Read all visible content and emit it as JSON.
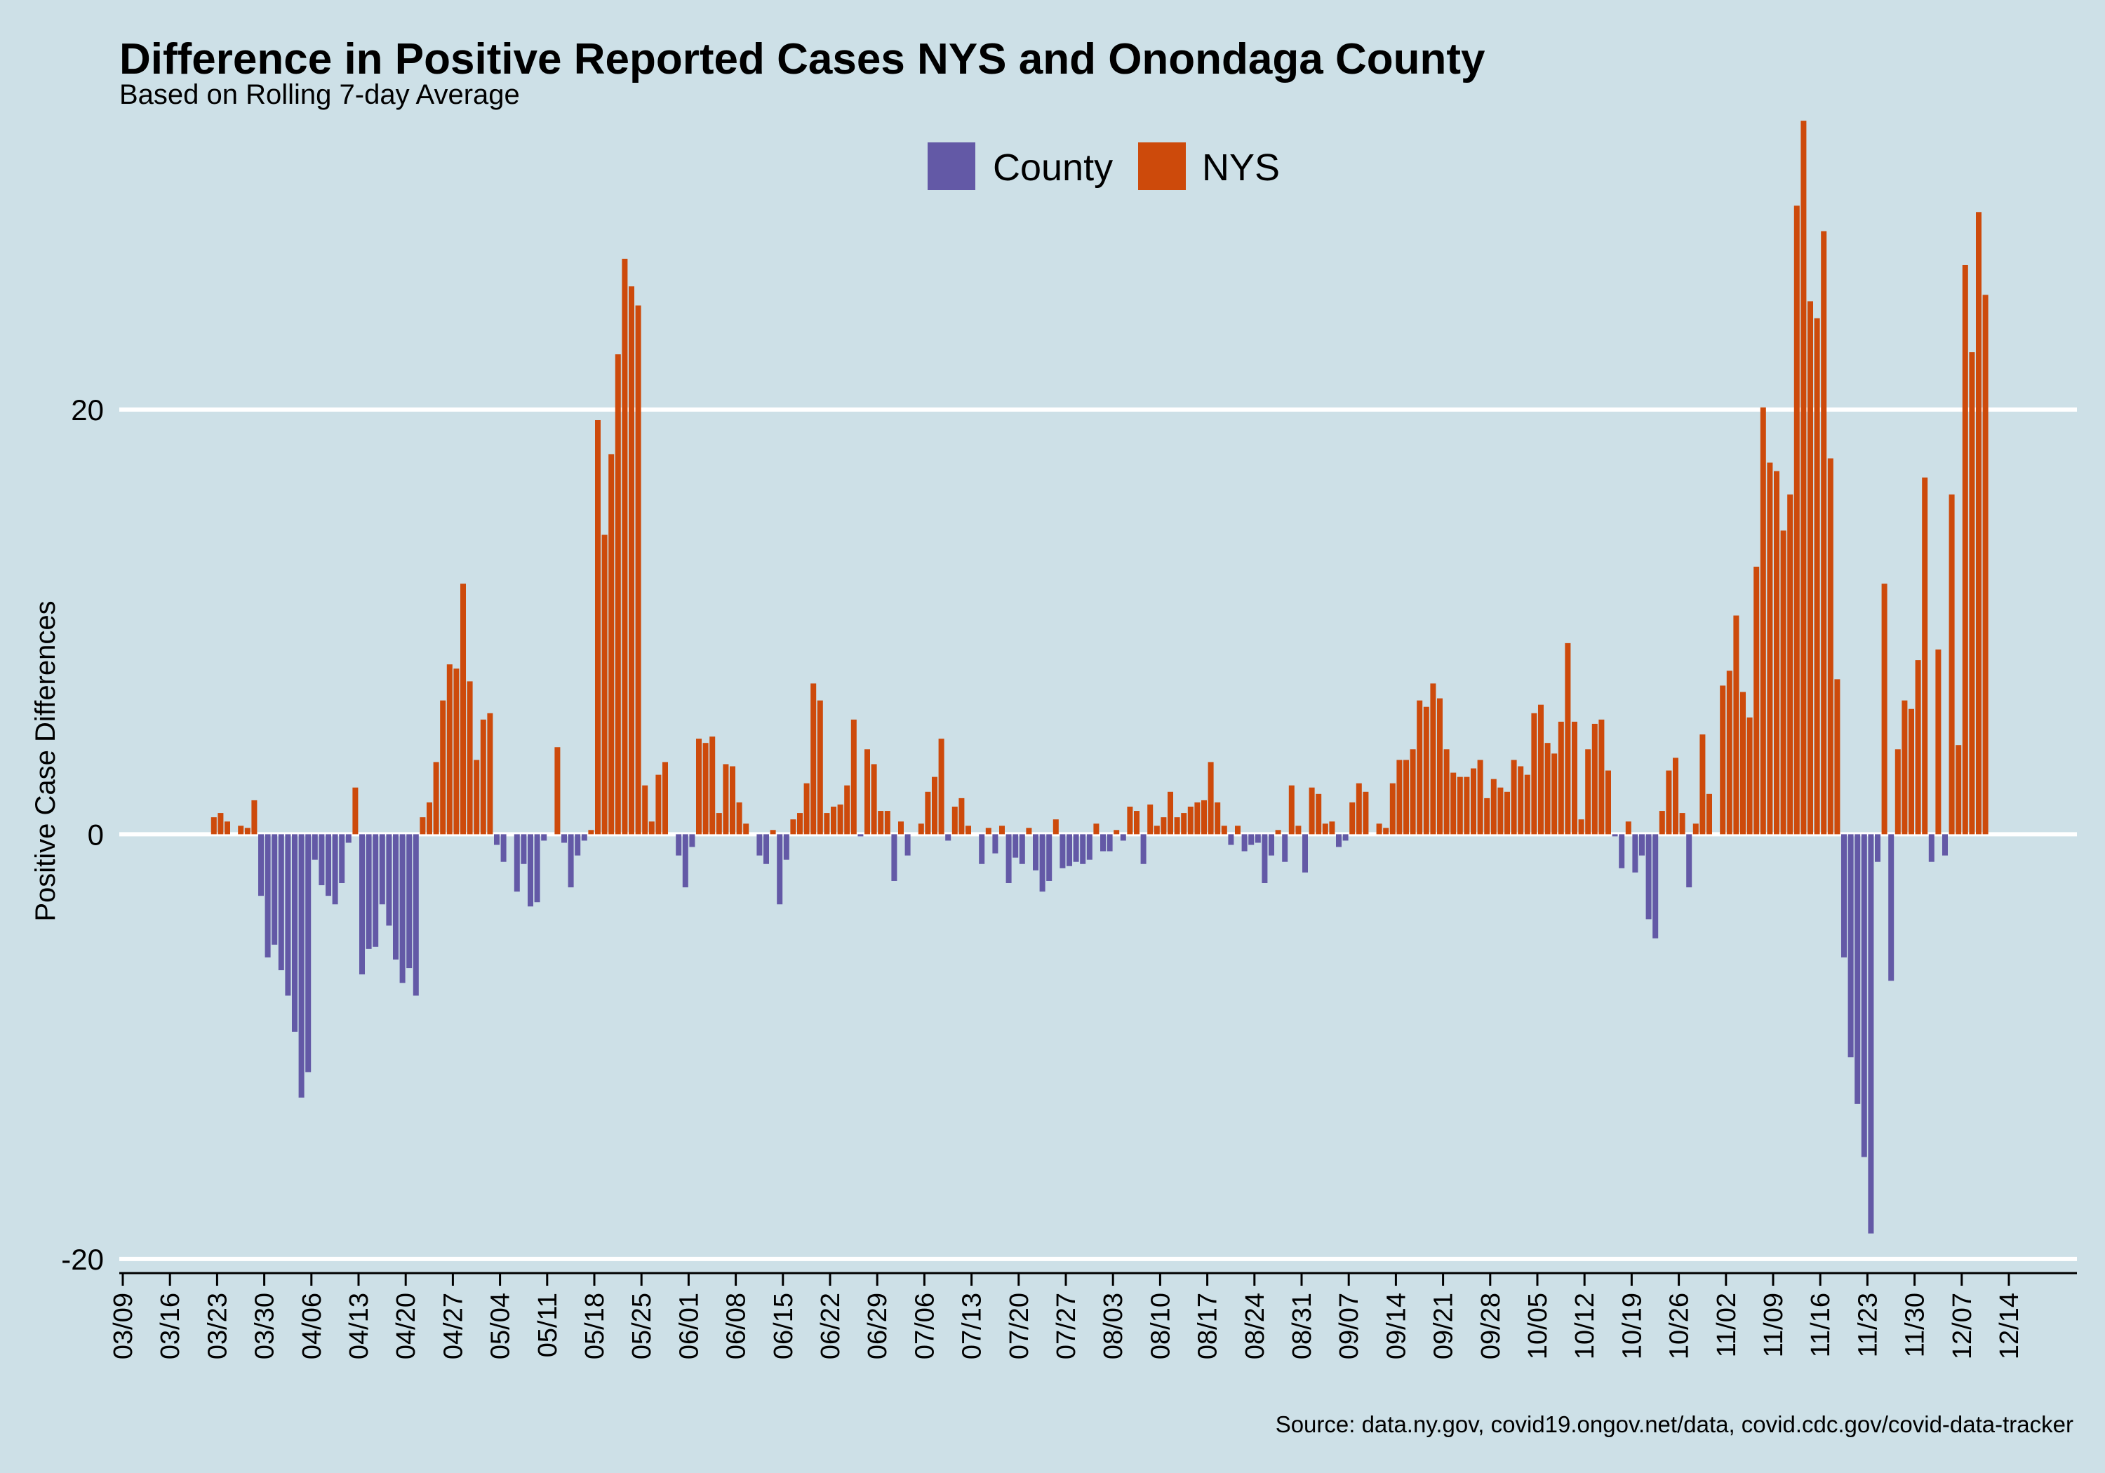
{
  "colors": {
    "background": "#cde0e7",
    "county": "#6359a6",
    "nys": "#cd4a0b",
    "grid": "#ffffff",
    "axis": "#000000"
  },
  "legend": {
    "county": "County",
    "nys": "NYS"
  },
  "caption": "Source: data.ny.gov, covid19.ongov.net/data, covid.cdc.gov/covid-data-tracker",
  "chart_data": {
    "type": "bar",
    "title": "Difference in Positive Reported Cases NYS and Onondaga County",
    "subtitle": "Based on Rolling 7-day Average",
    "ylabel": "Positive Case Differences",
    "xlabel": "",
    "ylim": [
      -20.5,
      34
    ],
    "y_ticks": [
      -20,
      0,
      20
    ],
    "x_start_date": "03/09",
    "x_ticks": [
      "03/09",
      "03/16",
      "03/23",
      "03/30",
      "04/06",
      "04/13",
      "04/20",
      "04/27",
      "05/04",
      "05/11",
      "05/18",
      "05/25",
      "06/01",
      "06/08",
      "06/15",
      "06/22",
      "06/29",
      "07/06",
      "07/13",
      "07/20",
      "07/27",
      "08/03",
      "08/10",
      "08/17",
      "08/24",
      "08/31",
      "09/07",
      "09/14",
      "09/21",
      "09/28",
      "10/05",
      "10/12",
      "10/19",
      "10/26",
      "11/02",
      "11/09",
      "11/16",
      "11/23",
      "11/30",
      "12/07",
      "12/14"
    ],
    "legend_position": "top",
    "grid": "horizontal major lines only",
    "series_rule": "bars above zero drawn as NYS, below zero as County",
    "first_date": "03/22",
    "values": [
      0.8,
      1.0,
      0.6,
      0,
      0.4,
      0.3,
      1.6,
      -2.9,
      -5.8,
      -5.2,
      -6.4,
      -7.6,
      -9.3,
      -12.4,
      -11.2,
      -1.2,
      -2.4,
      -2.9,
      -3.3,
      -2.3,
      -0.4,
      2.2,
      -6.6,
      -5.4,
      -5.3,
      -3.3,
      -4.3,
      -5.9,
      -7.0,
      -6.3,
      -7.6,
      0.8,
      1.5,
      3.4,
      6.3,
      8.0,
      7.8,
      11.8,
      7.2,
      3.5,
      5.4,
      5.7,
      -0.5,
      -1.3,
      0,
      -2.7,
      -1.4,
      -3.4,
      -3.2,
      -0.3,
      0,
      4.1,
      -0.4,
      -2.5,
      -1.0,
      -0.3,
      0.2,
      19.5,
      14.1,
      17.9,
      22.6,
      27.1,
      25.8,
      24.9,
      2.3,
      0.6,
      2.8,
      3.4,
      0,
      -1.0,
      -2.5,
      -0.6,
      4.5,
      4.3,
      4.6,
      1.0,
      3.3,
      3.2,
      1.5,
      0.5,
      0,
      -1.0,
      -1.4,
      0.2,
      -3.3,
      -1.2,
      0.7,
      1.0,
      2.4,
      7.1,
      6.3,
      1.0,
      1.3,
      1.4,
      2.3,
      5.4,
      -0.1,
      4.0,
      3.3,
      1.1,
      1.1,
      -2.2,
      0.6,
      -1.0,
      0,
      0.5,
      2.0,
      2.7,
      4.5,
      -0.3,
      1.3,
      1.7,
      0.4,
      0,
      -1.4,
      0.3,
      -0.9,
      0.4,
      -2.3,
      -1.1,
      -1.4,
      0.3,
      -1.7,
      -2.7,
      -2.2,
      0.7,
      -1.6,
      -1.5,
      -1.3,
      -1.4,
      -1.2,
      0.5,
      -0.8,
      -0.8,
      0.2,
      -0.3,
      1.3,
      1.1,
      -1.4,
      1.4,
      0.4,
      0.8,
      2.0,
      0.8,
      1.0,
      1.3,
      1.5,
      1.6,
      3.4,
      1.5,
      0.4,
      -0.5,
      0.4,
      -0.8,
      -0.5,
      -0.4,
      -2.3,
      -1.0,
      0.2,
      -1.3,
      2.3,
      0.4,
      -1.8,
      2.2,
      1.9,
      0.5,
      0.6,
      -0.6,
      -0.3,
      1.5,
      2.4,
      2.0,
      0,
      0.5,
      0.3,
      2.4,
      3.5,
      3.5,
      4.0,
      6.3,
      6.0,
      7.1,
      6.4,
      4.0,
      2.9,
      2.7,
      2.7,
      3.1,
      3.5,
      1.7,
      2.6,
      2.2,
      2.0,
      3.5,
      3.2,
      2.8,
      5.7,
      6.1,
      4.3,
      3.8,
      5.3,
      9.0,
      5.3,
      0.7,
      4.0,
      5.2,
      5.4,
      3.0,
      -0.1,
      -1.6,
      0.6,
      -1.8,
      -1.0,
      -4.0,
      -4.9,
      1.1,
      3.0,
      3.6,
      1.0,
      -2.5,
      0.5,
      4.7,
      1.9,
      0,
      7.0,
      7.7,
      10.3,
      6.7,
      5.5,
      12.6,
      20.1,
      17.5,
      17.1,
      14.3,
      16.0,
      29.6,
      33.6,
      25.1,
      24.3,
      28.4,
      17.7,
      7.3,
      -5.8,
      -10.5,
      -12.7,
      -15.2,
      -18.8,
      -1.3,
      11.8,
      -6.9,
      4.0,
      6.3,
      5.9,
      8.2,
      16.8,
      -1.3,
      8.7,
      -1.0,
      16.0,
      4.2,
      26.8,
      22.7,
      29.3,
      25.4
    ]
  }
}
